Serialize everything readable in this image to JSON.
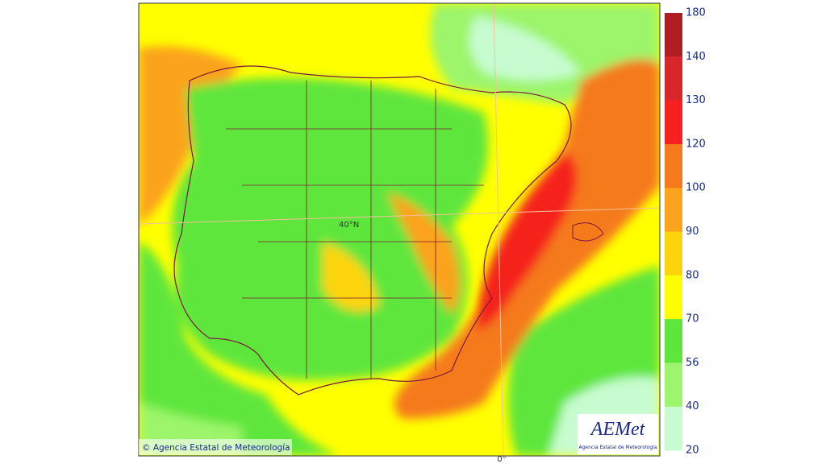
{
  "map": {
    "graticule_labels": {
      "latitude": "40°N",
      "longitude": "0°"
    },
    "copyright": "© Agencia Estatal de Meteorología",
    "logo": {
      "name": "AEMet",
      "subtitle": "Agencia Estatal de Meteorología"
    },
    "legend": {
      "labels": [
        "180",
        "140",
        "130",
        "120",
        "100",
        "90",
        "80",
        "70",
        "56",
        "40",
        "20"
      ],
      "colors": [
        "#b01e23",
        "#d9262a",
        "#f5201f",
        "#f57a1e",
        "#fba31c",
        "#fdd40c",
        "#ffff00",
        "#5fe63c",
        "#9cf56a",
        "#c8fcd0"
      ]
    }
  }
}
